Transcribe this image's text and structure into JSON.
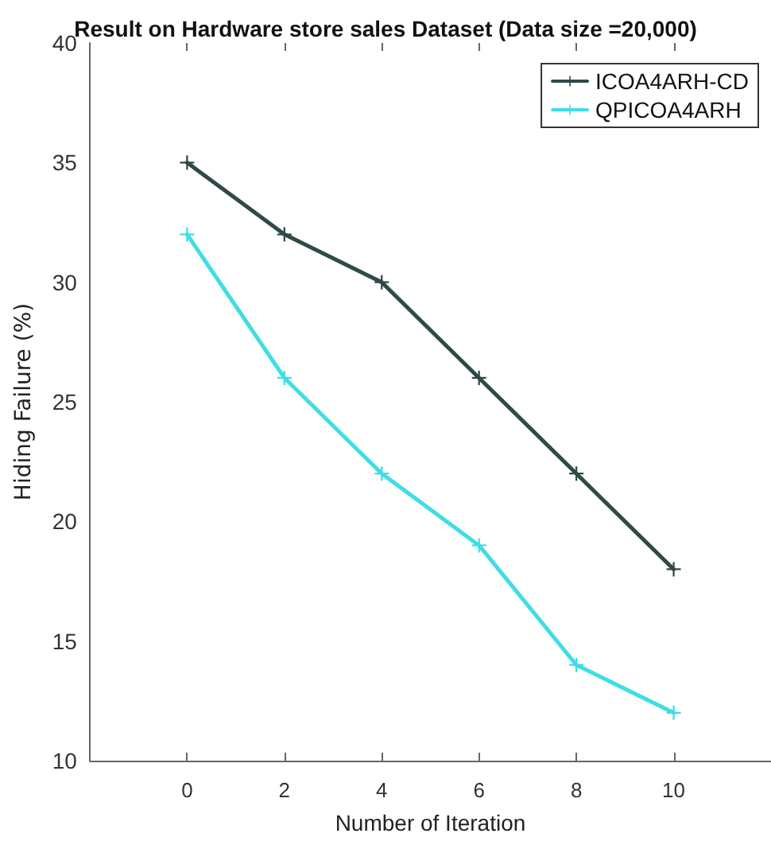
{
  "chart_data": {
    "type": "line",
    "title": "Result on Hardware store sales Dataset (Data size =20,000)",
    "xlabel": "Number of Iteration",
    "ylabel": "Hiding Failure (%)",
    "x": [
      0,
      2,
      4,
      6,
      8,
      10
    ],
    "series": [
      {
        "name": "ICOA4ARH-CD",
        "color": "#2f4a48",
        "values": [
          35,
          32,
          30,
          26,
          22,
          18
        ]
      },
      {
        "name": "QPICOA4ARH",
        "color": "#40dde6",
        "values": [
          32,
          26,
          22,
          19,
          14,
          12
        ]
      }
    ],
    "xlim": [
      -2,
      12
    ],
    "xticks": [
      0,
      2,
      4,
      6,
      8,
      10
    ],
    "ylim": [
      10,
      40
    ],
    "yticks": [
      10,
      15,
      20,
      25,
      30,
      35,
      40
    ],
    "grid": false,
    "legend": "top right",
    "marker": "cross",
    "line_style": "solid"
  }
}
